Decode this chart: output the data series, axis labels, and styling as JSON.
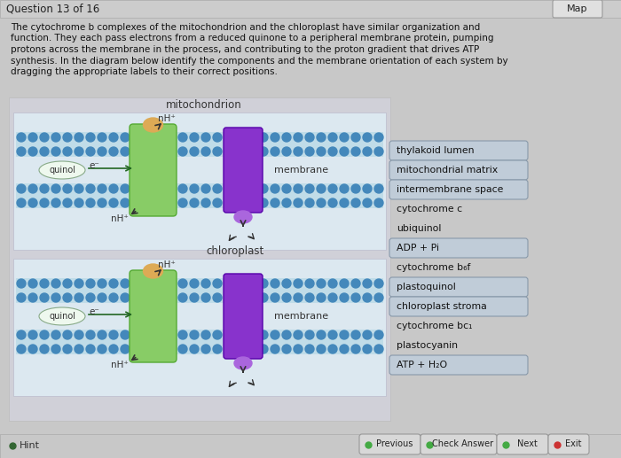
{
  "bg_color": "#c8c8c8",
  "title_bar_color": "#c0c0c0",
  "title_text": "Question 13 of 16",
  "map_text": "Map",
  "description_lines": [
    "The cytochrome b complexes of the mitochondrion and the chloroplast have similar organization and",
    "function. They each pass electrons from a reduced quinone to a peripheral membrane protein, pumping",
    "protons across the membrane in the process, and contributing to the proton gradient that drives ATP",
    "synthesis. In the diagram below identify the components and the membrane orientation of each system by",
    "dragging the appropriate labels to their correct positions."
  ],
  "diagram_bg": "#d8d8d8",
  "inner_diagram_bg": "#e8eef0",
  "membrane_circle_color": "#5599bb",
  "membrane_line_color": "#aaccdd",
  "membrane_bg": "#c8dde8",
  "green_protein_color": "#88cc66",
  "green_protein_edge": "#55aa33",
  "purple_complex_color": "#8833cc",
  "purple_complex_edge": "#5500aa",
  "purple_oval_color": "#aa66dd",
  "orange_oval_color": "#ddaa55",
  "quinol_box_color": "#ddeedd",
  "quinol_box_edge": "#88aa88",
  "arrow_color": "#333333",
  "green_arrow_color": "#226622",
  "labels_all": [
    "thylakoid lumen",
    "mitochondrial matrix",
    "intermembrane space",
    "cytochrome c",
    "ubiquinol",
    "ADP + Pi",
    "cytochrome b₆f",
    "plastoquinol",
    "chloroplast stroma",
    "cytochrome bc₁",
    "plastocyanin",
    "ATP + H₂O"
  ],
  "labels_boxed": [
    true,
    true,
    true,
    false,
    false,
    true,
    false,
    true,
    true,
    false,
    false,
    true
  ],
  "label_box_color": "#c0ccd8",
  "label_box_edge": "#8899aa",
  "mito_label": "mitochondrion",
  "chloro_label": "chloroplast",
  "membrane_label": "membrane",
  "quinol_label": "quinol",
  "nh_plus": "nH⁺",
  "e_minus": "e⁻",
  "hint_text": "Hint",
  "bottom_bar_color": "#c0c0c0",
  "btn_prev": "Previous",
  "btn_check": "Check Answer",
  "btn_next": "Next",
  "btn_exit": "Exit"
}
